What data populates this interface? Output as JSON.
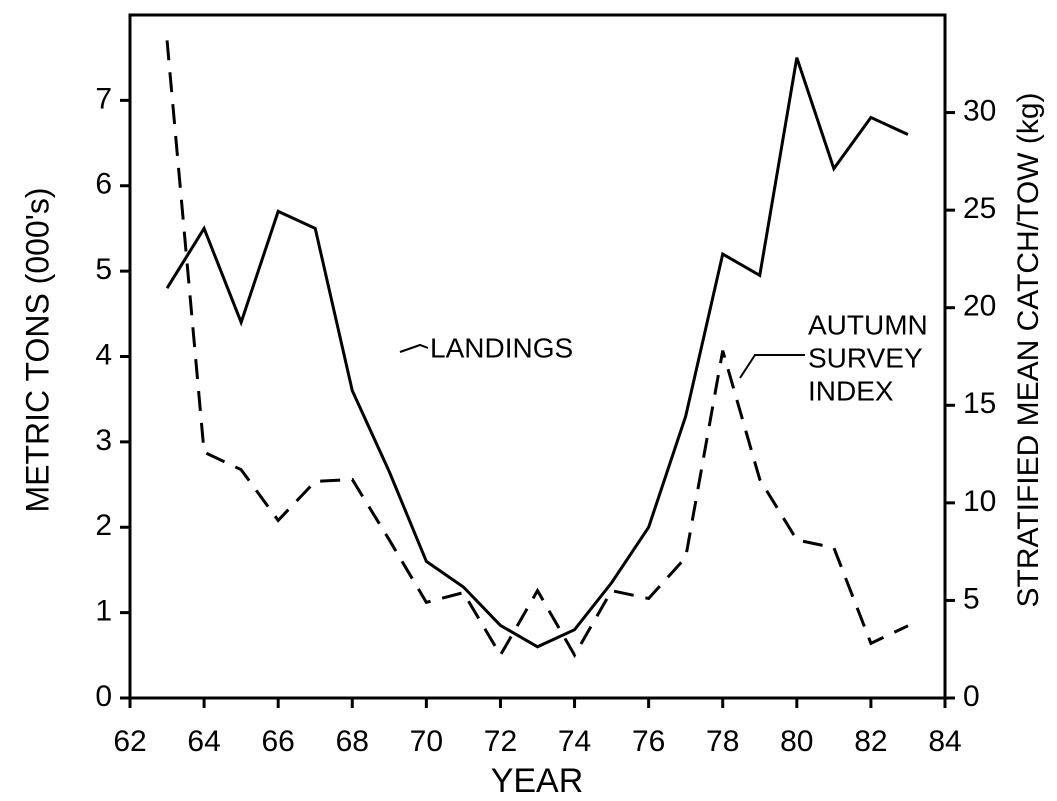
{
  "chart_data": {
    "type": "line",
    "xlabel": "YEAR",
    "ylabel": "METRIC TONS (000's)",
    "y2label": "STRATIFIED MEAN CATCH/TOW (kg)",
    "x": [
      63,
      64,
      65,
      66,
      67,
      68,
      69,
      70,
      71,
      72,
      73,
      74,
      75,
      76,
      77,
      78,
      79,
      80,
      81,
      82,
      83
    ],
    "series": [
      {
        "color": "#000000",
        "dash": false,
        "values": [
          4.8,
          5.5,
          4.4,
          5.7,
          5.5,
          3.6,
          2.65,
          1.6,
          1.3,
          0.85,
          0.6,
          0.8,
          1.35,
          2.0,
          3.3,
          5.2,
          4.95,
          7.5,
          6.2,
          6.8,
          6.6
        ]
      },
      {
        "color": "#000000",
        "dash": true,
        "axis": "y2",
        "values": [
          33.7,
          12.6,
          11.7,
          9.1,
          11.1,
          11.2,
          8.1,
          4.9,
          5.4,
          2.2,
          5.5,
          2.2,
          5.5,
          5.1,
          7.2,
          17.8,
          11.2,
          8.1,
          7.7,
          2.8,
          3.7
        ]
      }
    ],
    "annotations": [
      "LANDINGS",
      "AUTUMN",
      "SURVEY",
      "INDEX"
    ],
    "xlim": [
      62,
      84
    ],
    "xticks": [
      62,
      64,
      66,
      68,
      70,
      72,
      74,
      76,
      78,
      80,
      82,
      84
    ],
    "ylim": [
      0,
      8
    ],
    "yticks": [
      0,
      1,
      2,
      3,
      4,
      5,
      6,
      7
    ],
    "y2lim": [
      0,
      35
    ],
    "y2ticks": [
      0,
      5,
      10,
      15,
      20,
      25,
      30
    ],
    "grid": false
  }
}
